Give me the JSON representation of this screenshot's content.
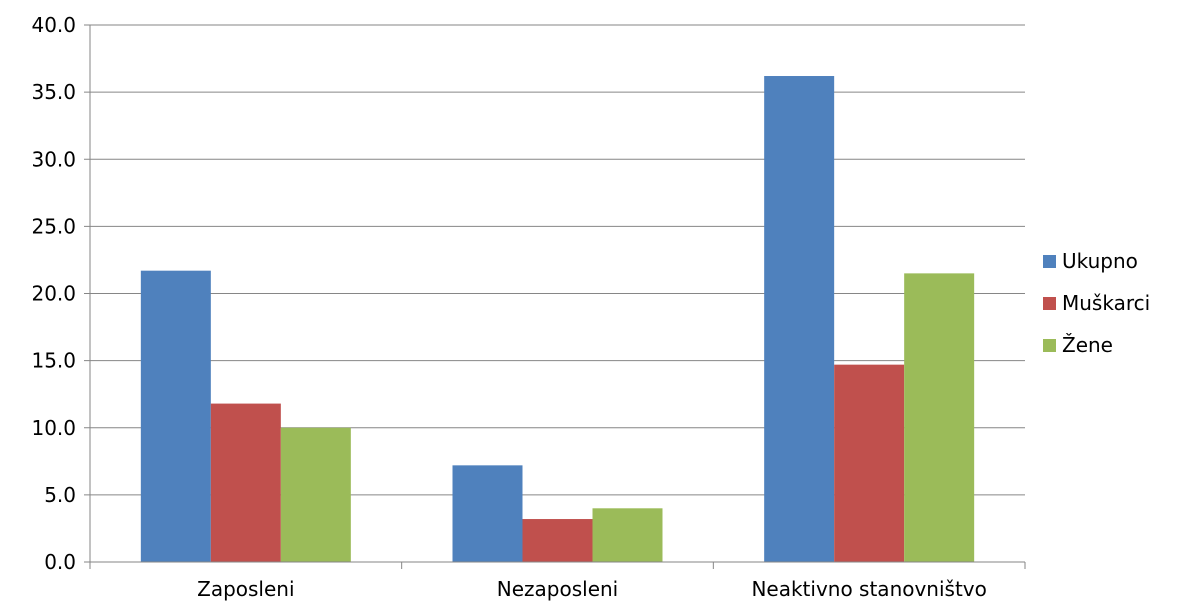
{
  "chart_data": {
    "type": "bar",
    "categories": [
      "Zaposleni",
      "Nezaposleni",
      "Neaktivno stanovništvo"
    ],
    "series": [
      {
        "name": "Ukupno",
        "values": [
          21.7,
          7.2,
          36.2
        ],
        "color": "#4f81bd"
      },
      {
        "name": "Muškarci",
        "values": [
          11.8,
          3.2,
          14.7
        ],
        "color": "#c0504d"
      },
      {
        "name": "Žene",
        "values": [
          10.0,
          4.0,
          21.5
        ],
        "color": "#9bbb59"
      }
    ],
    "yticks": [
      "0.0",
      "5.0",
      "10.0",
      "15.0",
      "20.0",
      "25.0",
      "30.0",
      "35.0",
      "40.0"
    ],
    "ylim": [
      0,
      40
    ],
    "grid": true,
    "legend_position": "right"
  }
}
